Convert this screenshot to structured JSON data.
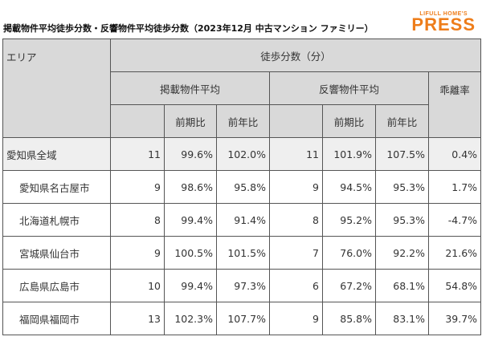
{
  "header": {
    "title": "掲載物件平均徒歩分数・反響物件平均徒歩分数（2023年12月 中古マンション ファミリー）",
    "logo_top": "LIFULL HOME'S",
    "logo_main": "PRESS"
  },
  "table": {
    "area_header": "エリア",
    "walk_header": "徒歩分数（分）",
    "listing_header": "掲載物件平均",
    "response_header": "反響物件平均",
    "gap_header": "乖離率",
    "sub_headers": [
      "前期比",
      "前年比",
      "前期比",
      "前年比"
    ],
    "rows": [
      [
        "愛知県全域",
        "11",
        "99.6%",
        "102.0%",
        "11",
        "101.9%",
        "107.5%",
        "0.4%"
      ],
      [
        "愛知県名古屋市",
        "9",
        "98.6%",
        "95.8%",
        "9",
        "94.5%",
        "95.3%",
        "1.7%"
      ],
      [
        "北海道札幌市",
        "8",
        "99.4%",
        "91.4%",
        "8",
        "95.2%",
        "95.3%",
        "-4.7%"
      ],
      [
        "宮城県仙台市",
        "9",
        "100.5%",
        "101.5%",
        "7",
        "76.0%",
        "92.2%",
        "21.6%"
      ],
      [
        "広島県広島市",
        "10",
        "99.4%",
        "97.3%",
        "6",
        "67.2%",
        "68.1%",
        "54.8%"
      ],
      [
        "福岡県福岡市",
        "13",
        "102.3%",
        "107.7%",
        "9",
        "85.8%",
        "83.1%",
        "39.7%"
      ]
    ]
  }
}
